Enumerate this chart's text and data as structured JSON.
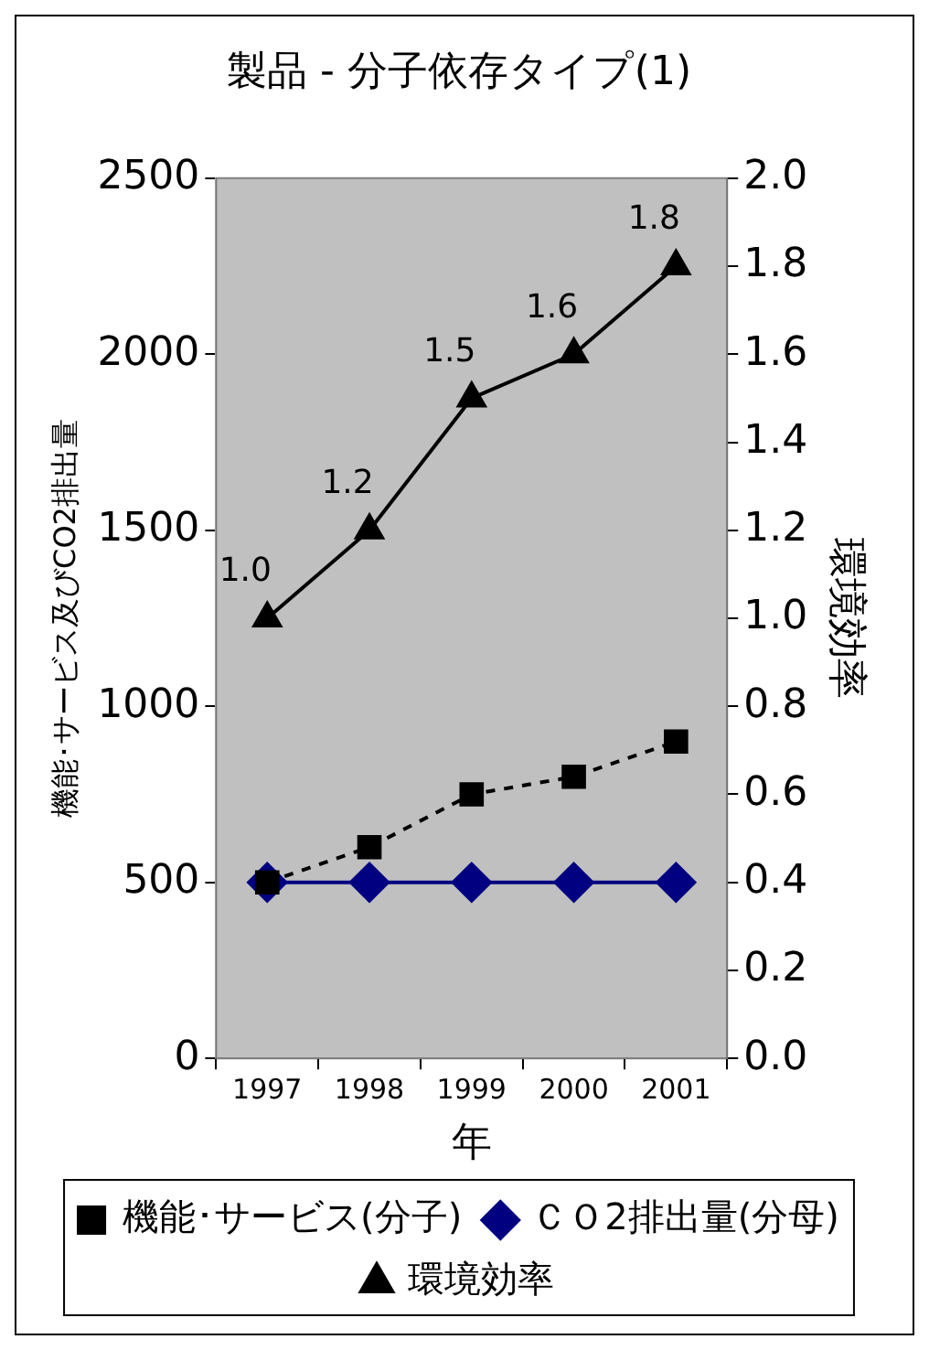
{
  "chart_data": {
    "type": "line",
    "title": "製品 - 分子依存タイプ(1)",
    "xlabel": "年",
    "ylabel": "機能･サービス及びCO2排出量",
    "y2label": "環境効率",
    "categories": [
      "1997",
      "1998",
      "1999",
      "2000",
      "2001"
    ],
    "series": [
      {
        "name": "機能･サービス(分子)",
        "color": "#000000",
        "values": [
          500,
          600,
          750,
          800,
          900
        ],
        "marker": "square",
        "line_style": "dashed"
      },
      {
        "name": "ＣＯ2排出量(分母)",
        "color": "#000080",
        "values": [
          500,
          500,
          500,
          500,
          500
        ],
        "marker": "diamond",
        "line_style": "solid"
      },
      {
        "name": "環境効率",
        "color": "#000000",
        "values": [
          1.0,
          1.2,
          1.5,
          1.6,
          1.8
        ],
        "axis": "y2",
        "marker": "triangle",
        "line_style": "solid",
        "value_labels": [
          "1.0",
          "1.2",
          "1.5",
          "1.6",
          "1.8"
        ]
      }
    ],
    "ylim": [
      0,
      2500
    ],
    "yticks": [
      0,
      500,
      1000,
      1500,
      2000,
      2500
    ],
    "y2lim": [
      0,
      2.0
    ],
    "y2ticks": [
      {
        "value": 0,
        "label": "0.0"
      },
      {
        "value": 0.2,
        "label": "0.2"
      },
      {
        "value": 0.4,
        "label": "0.4"
      },
      {
        "value": 0.6,
        "label": "0.6"
      },
      {
        "value": 0.8,
        "label": "0.8"
      },
      {
        "value": 1.0,
        "label": "1.0"
      },
      {
        "value": 1.2,
        "label": "1.2"
      },
      {
        "value": 1.4,
        "label": "1.4"
      },
      {
        "value": 1.6,
        "label": "1.6"
      },
      {
        "value": 1.8,
        "label": "1.8"
      },
      {
        "value": 2.0,
        "label": "2.0"
      }
    ],
    "legend": "bottom"
  }
}
